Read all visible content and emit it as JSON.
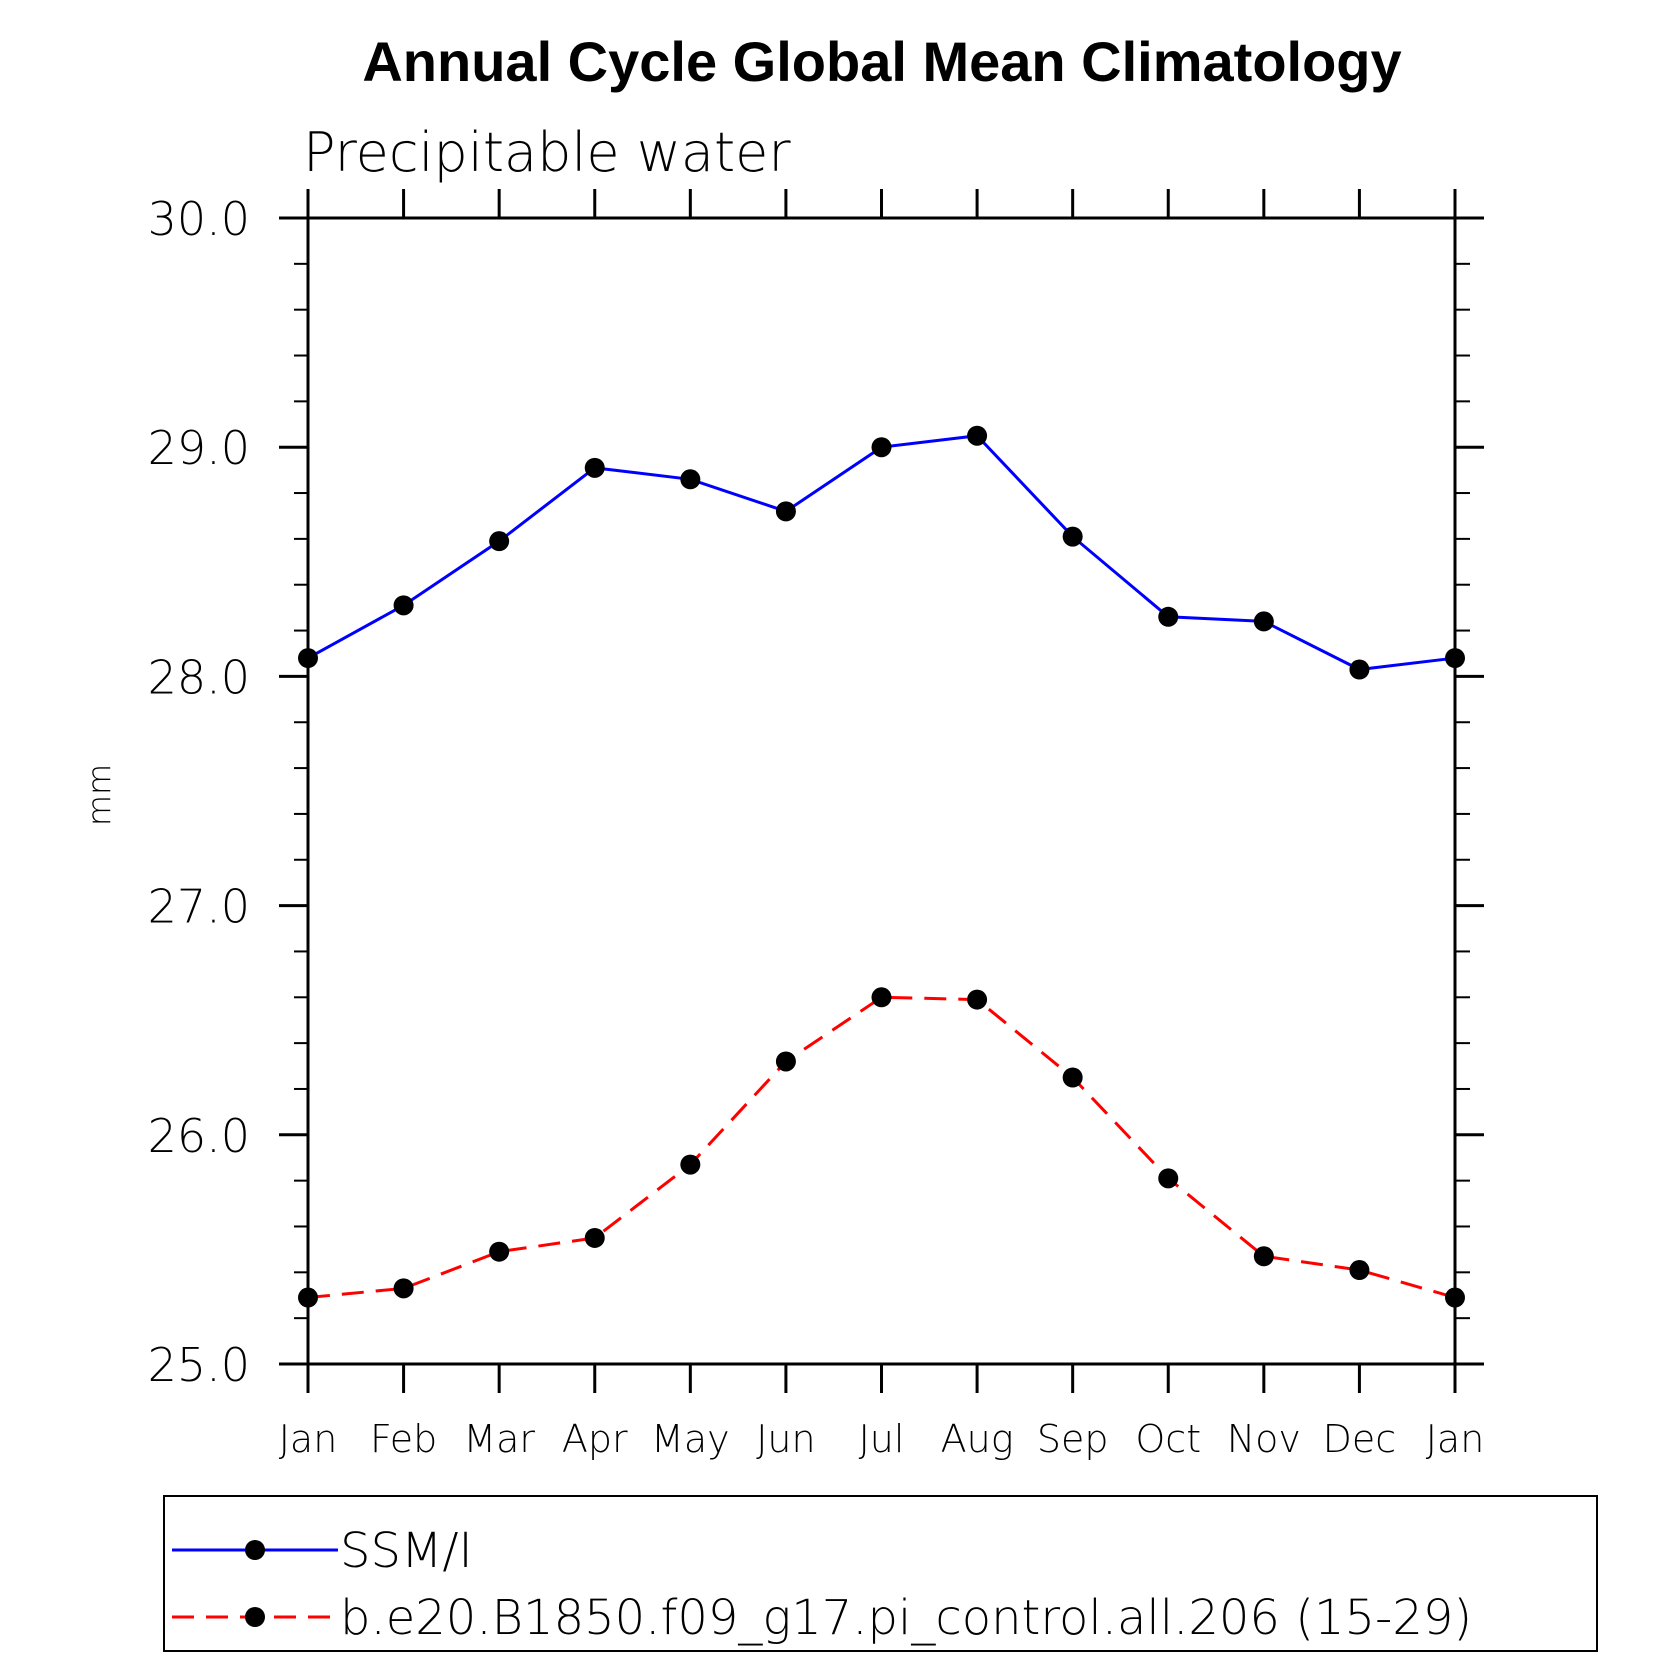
{
  "chart_data": {
    "type": "line",
    "title": "Annual Cycle Global Mean Climatology",
    "subtitle": "Precipitable water",
    "ylabel": "mm",
    "xlabel": "",
    "ylim": [
      25.0,
      30.0
    ],
    "yticks": [
      "25.0",
      "26.0",
      "27.0",
      "28.0",
      "29.0",
      "30.0"
    ],
    "categories": [
      "Jan",
      "Feb",
      "Mar",
      "Apr",
      "May",
      "Jun",
      "Jul",
      "Aug",
      "Sep",
      "Oct",
      "Nov",
      "Dec",
      "Jan"
    ],
    "legend_position": "bottom",
    "grid": false,
    "series": [
      {
        "name": "SSM/I",
        "color": "#0000ff",
        "line_style": "solid",
        "marker": "filled-circle",
        "values": [
          28.08,
          28.31,
          28.59,
          28.91,
          28.86,
          28.72,
          29.0,
          29.05,
          28.61,
          28.26,
          28.24,
          28.03,
          28.08
        ]
      },
      {
        "name": "b.e20.B1850.f09_g17.pi_control.all.206 (15-29)",
        "color": "#ff0000",
        "line_style": "dashed",
        "marker": "filled-circle",
        "values": [
          25.29,
          25.33,
          25.49,
          25.55,
          25.87,
          26.32,
          26.6,
          26.59,
          26.25,
          25.81,
          25.47,
          25.41,
          25.29
        ]
      }
    ]
  }
}
